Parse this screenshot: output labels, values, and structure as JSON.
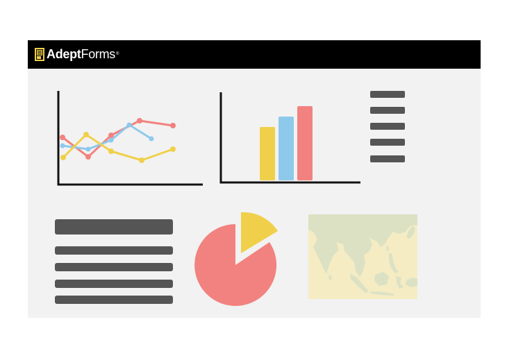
{
  "app": {
    "brand_bold": "Adept",
    "brand_light": "Forms",
    "trademark": "®"
  },
  "colors": {
    "header_bg": "#000000",
    "panel_bg": "#f2f2f2",
    "red": "#f2827f",
    "yellow": "#f0d04a",
    "blue": "#8ec9ec",
    "bar_gray": "#555555",
    "map_land": "#dce1c4",
    "map_bg": "#f5ecc4"
  },
  "icons": [
    "document-icon",
    "line-chart-icon",
    "bar-chart-icon",
    "pie-chart-icon",
    "map-icon"
  ],
  "line_chart": {
    "series": [
      {
        "color": "red",
        "values": [
          3,
          1,
          4,
          6,
          5.5
        ]
      },
      {
        "color": "blue",
        "values": [
          2.5,
          2,
          3,
          5,
          3
        ]
      },
      {
        "color": "yellow",
        "values": [
          1,
          4,
          2,
          1,
          2
        ]
      }
    ]
  },
  "bar_chart": {
    "values": [
      5,
      6,
      7
    ],
    "colors": [
      "yellow",
      "blue",
      "red"
    ]
  },
  "pie_chart": {
    "slices": [
      {
        "color": "red",
        "value": 85
      },
      {
        "color": "yellow",
        "value": 15
      }
    ]
  }
}
